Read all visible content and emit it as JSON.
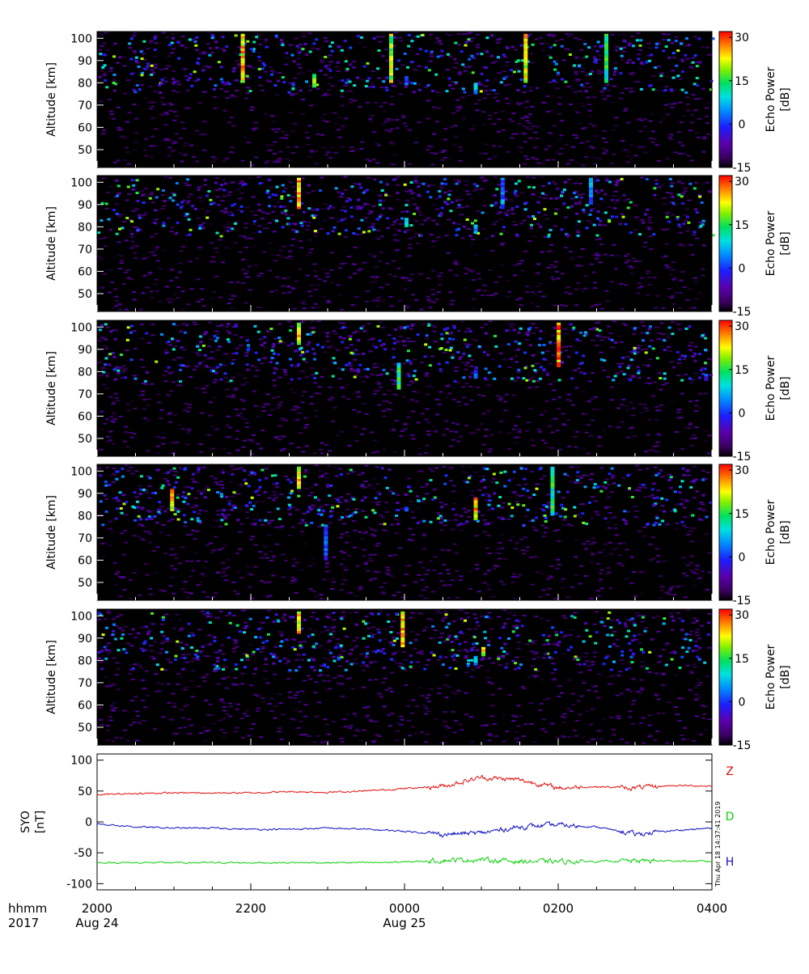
{
  "chart_data": [
    {
      "type": "heatmap",
      "ylabel": "Altitude [km]",
      "ylim": [
        42,
        103
      ],
      "yticks": [
        "100",
        "90",
        "80",
        "70",
        "60",
        "50"
      ],
      "colorbar": {
        "label": "Echo Power [dB]",
        "ticks": [
          "30",
          "15",
          "0",
          "-15"
        ],
        "range": [
          -15,
          32
        ]
      },
      "features": [
        {
          "t": 1.87,
          "alt_from": 80,
          "alt_to": 102,
          "db": 30
        },
        {
          "t": 2.8,
          "alt_from": 78,
          "alt_to": 84,
          "db": 22
        },
        {
          "t": 3.8,
          "alt_from": 80,
          "alt_to": 102,
          "db": 25
        },
        {
          "t": 4.0,
          "alt_from": 79,
          "alt_to": 83,
          "db": 10
        },
        {
          "t": 4.9,
          "alt_from": 75,
          "alt_to": 80,
          "db": 12
        },
        {
          "t": 5.55,
          "alt_from": 80,
          "alt_to": 102,
          "db": 28
        },
        {
          "t": 6.6,
          "alt_from": 80,
          "alt_to": 102,
          "db": 18
        }
      ]
    },
    {
      "type": "heatmap",
      "ylabel": "Altitude [km]",
      "ylim": [
        42,
        103
      ],
      "yticks": [
        "100",
        "90",
        "80",
        "70",
        "60",
        "50"
      ],
      "colorbar": {
        "label": "Echo Power [dB]",
        "ticks": [
          "30",
          "15",
          "0",
          "-15"
        ],
        "range": [
          -15,
          32
        ]
      },
      "features": [
        {
          "t": 2.6,
          "alt_from": 88,
          "alt_to": 102,
          "db": 30
        },
        {
          "t": 4.0,
          "alt_from": 80,
          "alt_to": 84,
          "db": 12
        },
        {
          "t": 4.9,
          "alt_from": 77,
          "alt_to": 81,
          "db": 14
        },
        {
          "t": 5.25,
          "alt_from": 88,
          "alt_to": 102,
          "db": 10
        },
        {
          "t": 6.4,
          "alt_from": 90,
          "alt_to": 102,
          "db": 10
        }
      ]
    },
    {
      "type": "heatmap",
      "ylabel": "Altitude [km]",
      "ylim": [
        42,
        103
      ],
      "yticks": [
        "100",
        "90",
        "80",
        "70",
        "60",
        "50"
      ],
      "colorbar": {
        "label": "Echo Power [dB]",
        "ticks": [
          "30",
          "15",
          "0",
          "-15"
        ],
        "range": [
          -15,
          32
        ]
      },
      "features": [
        {
          "t": 2.6,
          "alt_from": 92,
          "alt_to": 102,
          "db": 28
        },
        {
          "t": 3.9,
          "alt_from": 72,
          "alt_to": 84,
          "db": 18
        },
        {
          "t": 4.9,
          "alt_from": 77,
          "alt_to": 81,
          "db": 10
        },
        {
          "t": 5.98,
          "alt_from": 82,
          "alt_to": 102,
          "db": 32
        },
        {
          "t": 7.9,
          "alt_from": 76,
          "alt_to": 79,
          "db": 5
        }
      ]
    },
    {
      "type": "heatmap",
      "ylabel": "Altitude [km]",
      "ylim": [
        42,
        103
      ],
      "yticks": [
        "100",
        "90",
        "80",
        "70",
        "60",
        "50"
      ],
      "colorbar": {
        "label": "Echo Power [dB]",
        "ticks": [
          "30",
          "15",
          "0",
          "-15"
        ],
        "range": [
          -15,
          32
        ]
      },
      "features": [
        {
          "t": 0.95,
          "alt_from": 82,
          "alt_to": 92,
          "db": 30
        },
        {
          "t": 2.6,
          "alt_from": 92,
          "alt_to": 102,
          "db": 28
        },
        {
          "t": 2.95,
          "alt_from": 60,
          "alt_to": 76,
          "db": 5
        },
        {
          "t": 4.0,
          "alt_from": 82,
          "alt_to": 84,
          "db": 10
        },
        {
          "t": 4.9,
          "alt_from": 78,
          "alt_to": 88,
          "db": 30
        },
        {
          "t": 5.9,
          "alt_from": 80,
          "alt_to": 102,
          "db": 18
        }
      ]
    },
    {
      "type": "heatmap",
      "ylabel": "Altitude [km]",
      "ylim": [
        42,
        103
      ],
      "yticks": [
        "100",
        "90",
        "80",
        "70",
        "60",
        "50"
      ],
      "colorbar": {
        "label": "Echo Power [dB]",
        "ticks": [
          "30",
          "15",
          "0",
          "-15"
        ],
        "range": [
          -15,
          32
        ]
      },
      "features": [
        {
          "t": 2.6,
          "alt_from": 92,
          "alt_to": 102,
          "db": 30
        },
        {
          "t": 3.95,
          "alt_from": 86,
          "alt_to": 102,
          "db": 30
        },
        {
          "t": 4.9,
          "alt_from": 78,
          "alt_to": 82,
          "db": 15
        },
        {
          "t": 5.0,
          "alt_from": 82,
          "alt_to": 86,
          "db": 28
        }
      ]
    },
    {
      "type": "line",
      "ylabel": "SYO [nT]",
      "ylim": [
        -110,
        110
      ],
      "yticks": [
        "100",
        "50",
        "0",
        "-50",
        "-100"
      ],
      "series": [
        {
          "name": "Z",
          "color": "#e01010",
          "t": [
            0,
            0.5,
            1,
            1.5,
            2,
            2.5,
            3,
            3.5,
            4,
            4.5,
            5,
            5.5,
            6,
            6.5,
            7,
            7.5,
            8
          ],
          "values": [
            44,
            46,
            47,
            47,
            47,
            49,
            48,
            50,
            54,
            58,
            72,
            68,
            55,
            57,
            55,
            59,
            58
          ]
        },
        {
          "name": "D",
          "color": "#10d010",
          "t": [
            0,
            0.5,
            1,
            1.5,
            2,
            2.5,
            3,
            3.5,
            4,
            4.5,
            5,
            5.5,
            6,
            6.5,
            7,
            7.5,
            8
          ],
          "values": [
            -66,
            -66,
            -66,
            -66,
            -66,
            -66,
            -66,
            -66,
            -65,
            -62,
            -61,
            -64,
            -64,
            -64,
            -63,
            -63,
            -64
          ]
        },
        {
          "name": "H",
          "color": "#1010c0",
          "t": [
            0,
            0.5,
            1,
            1.5,
            2,
            2.5,
            3,
            3.5,
            4,
            4.5,
            5,
            5.5,
            6,
            6.5,
            7,
            7.5,
            8
          ],
          "values": [
            -3,
            -8,
            -10,
            -10,
            -12,
            -12,
            -10,
            -12,
            -15,
            -20,
            -18,
            -8,
            -5,
            -8,
            -20,
            -14,
            -10
          ]
        }
      ],
      "right_stamp": "Thu Apr 18 14:37:41 2019"
    }
  ],
  "x_axis": {
    "row_label_1": "hhmm",
    "row_label_2": "2017",
    "range_hours_from_2000": [
      0,
      8
    ],
    "ticks": [
      {
        "t": 0,
        "label": "2000",
        "sub": "Aug 24"
      },
      {
        "t": 2,
        "label": "2200",
        "sub": ""
      },
      {
        "t": 4,
        "label": "0000",
        "sub": "Aug 25"
      },
      {
        "t": 6,
        "label": "0200",
        "sub": ""
      },
      {
        "t": 8,
        "label": "0400",
        "sub": ""
      }
    ]
  }
}
